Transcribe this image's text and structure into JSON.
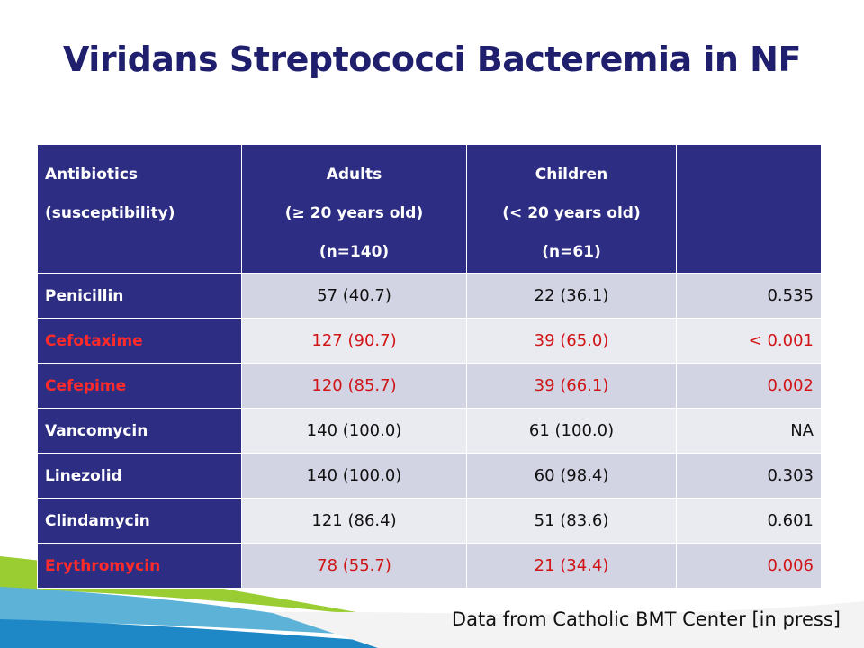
{
  "title": "Viridans Streptococci Bacteremia in NF",
  "table": {
    "headers": {
      "col1": [
        "Antibiotics",
        "(susceptibility)"
      ],
      "col2": [
        "Adults",
        "(≥ 20 years old)",
        "(n=140)"
      ],
      "col3": [
        "Children",
        "(< 20 years old)",
        "(n=61)"
      ],
      "col4": ""
    },
    "rows": [
      {
        "antibiotic": "Penicillin",
        "adults": "57 (40.7)",
        "children": "22 (36.1)",
        "p": "0.535",
        "highlight": false
      },
      {
        "antibiotic": "Cefotaxime",
        "adults": "127 (90.7)",
        "children": "39 (65.0)",
        "p": "< 0.001",
        "highlight": true
      },
      {
        "antibiotic": "Cefepime",
        "adults": "120 (85.7)",
        "children": "39 (66.1)",
        "p": "0.002",
        "highlight": true
      },
      {
        "antibiotic": "Vancomycin",
        "adults": "140 (100.0)",
        "children": "61 (100.0)",
        "p": "NA",
        "highlight": false
      },
      {
        "antibiotic": "Linezolid",
        "adults": "140 (100.0)",
        "children": "60 (98.4)",
        "p": "0.303",
        "highlight": false
      },
      {
        "antibiotic": "Clindamycin",
        "adults": "121 (86.4)",
        "children": "51 (83.6)",
        "p": "0.601",
        "highlight": false
      },
      {
        "antibiotic": "Erythromycin",
        "adults": "78 (55.7)",
        "children": "21 (34.4)",
        "p": "0.006",
        "highlight": true
      }
    ]
  },
  "footnote": "Data from Catholic BMT Center [in press]",
  "colors": {
    "header_bg": "#2d2e83",
    "title": "#1f1f6e",
    "highlight_text": "#ff2a2a",
    "row_odd": "#d2d3e3",
    "row_even": "#eaeaf1"
  }
}
